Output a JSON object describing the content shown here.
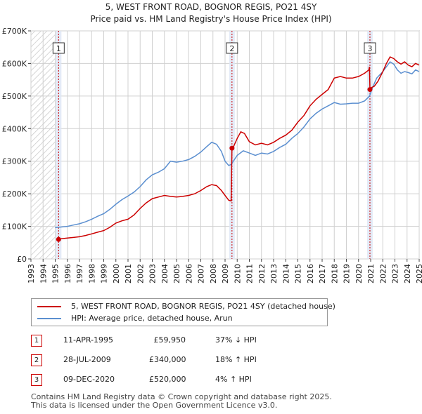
{
  "chart_data": {
    "type": "line",
    "title": "5, WEST FRONT ROAD, BOGNOR REGIS, PO21 4SY",
    "subtitle": "Price paid vs. HM Land Registry's House Price Index (HPI)",
    "xlabel": "",
    "ylabel": "",
    "xlim": [
      1993,
      2025
    ],
    "ylim": [
      0,
      700000
    ],
    "y_ticks": [
      {
        "value": 0,
        "label": "£0"
      },
      {
        "value": 100000,
        "label": "£100K"
      },
      {
        "value": 200000,
        "label": "£200K"
      },
      {
        "value": 300000,
        "label": "£300K"
      },
      {
        "value": 400000,
        "label": "£400K"
      },
      {
        "value": 500000,
        "label": "£500K"
      },
      {
        "value": 600000,
        "label": "£600K"
      },
      {
        "value": 700000,
        "label": "£700K"
      }
    ],
    "x_ticks": [
      "1993",
      "1994",
      "1995",
      "1996",
      "1997",
      "1998",
      "1999",
      "2000",
      "2001",
      "2002",
      "2003",
      "2004",
      "2005",
      "2006",
      "2007",
      "2008",
      "2009",
      "2010",
      "2011",
      "2012",
      "2013",
      "2014",
      "2015",
      "2016",
      "2017",
      "2018",
      "2019",
      "2020",
      "2021",
      "2022",
      "2023",
      "2024",
      "2025"
    ],
    "grid": true,
    "series": [
      {
        "name": "5, WEST FRONT ROAD, BOGNOR REGIS, PO21 4SY (detached house)",
        "color": "#cc0000",
        "x": [
          1995.28,
          1995.5,
          1996.0,
          1996.5,
          1997.0,
          1997.5,
          1998.0,
          1998.5,
          1999.0,
          1999.5,
          2000.0,
          2000.5,
          2001.0,
          2001.5,
          2002.0,
          2002.5,
          2003.0,
          2003.5,
          2004.0,
          2004.5,
          2005.0,
          2005.5,
          2006.0,
          2006.5,
          2007.0,
          2007.5,
          2007.9,
          2008.3,
          2008.7,
          2009.0,
          2009.3,
          2009.5,
          2009.57,
          2009.7,
          2010.0,
          2010.3,
          2010.6,
          2011.0,
          2011.5,
          2012.0,
          2012.5,
          2013.0,
          2013.5,
          2014.0,
          2014.5,
          2015.0,
          2015.5,
          2016.0,
          2016.5,
          2017.0,
          2017.5,
          2018.0,
          2018.5,
          2019.0,
          2019.5,
          2020.0,
          2020.5,
          2020.85,
          2020.9,
          2020.94,
          2021.0,
          2021.3,
          2021.6,
          2022.0,
          2022.3,
          2022.6,
          2022.9,
          2023.2,
          2023.5,
          2023.8,
          2024.1,
          2024.4,
          2024.7,
          2025.0
        ],
        "values": [
          59950,
          62000,
          64000,
          66000,
          68000,
          72000,
          77000,
          82000,
          87000,
          97000,
          110000,
          117000,
          122000,
          135000,
          155000,
          172000,
          185000,
          190000,
          195000,
          192000,
          190000,
          192000,
          195000,
          200000,
          210000,
          222000,
          228000,
          225000,
          210000,
          195000,
          180000,
          178000,
          340000,
          345000,
          370000,
          390000,
          385000,
          360000,
          350000,
          355000,
          350000,
          358000,
          370000,
          380000,
          395000,
          420000,
          440000,
          470000,
          490000,
          505000,
          520000,
          555000,
          560000,
          555000,
          555000,
          560000,
          570000,
          580000,
          590000,
          520000,
          525000,
          530000,
          545000,
          575000,
          600000,
          620000,
          615000,
          605000,
          598000,
          605000,
          595000,
          590000,
          600000,
          595000
        ]
      },
      {
        "name": "HPI: Average price, detached house, Arun",
        "color": "#5b8fd0",
        "x": [
          1995.0,
          1995.5,
          1996.0,
          1996.5,
          1997.0,
          1997.5,
          1998.0,
          1998.5,
          1999.0,
          1999.5,
          2000.0,
          2000.5,
          2001.0,
          2001.5,
          2002.0,
          2002.5,
          2003.0,
          2003.5,
          2004.0,
          2004.5,
          2005.0,
          2005.5,
          2006.0,
          2006.5,
          2007.0,
          2007.5,
          2007.9,
          2008.3,
          2008.7,
          2009.0,
          2009.3,
          2009.5,
          2010.0,
          2010.5,
          2011.0,
          2011.5,
          2012.0,
          2012.5,
          2013.0,
          2013.5,
          2014.0,
          2014.5,
          2015.0,
          2015.5,
          2016.0,
          2016.5,
          2017.0,
          2017.5,
          2018.0,
          2018.5,
          2019.0,
          2019.5,
          2020.0,
          2020.5,
          2020.9,
          2021.2,
          2021.5,
          2022.0,
          2022.3,
          2022.6,
          2022.9,
          2023.2,
          2023.5,
          2023.8,
          2024.1,
          2024.4,
          2024.7,
          2025.0
        ],
        "values": [
          96000,
          98000,
          100000,
          104000,
          108000,
          114000,
          122000,
          131000,
          139000,
          152000,
          168000,
          182000,
          193000,
          205000,
          222000,
          243000,
          258000,
          266000,
          277000,
          300000,
          297000,
          300000,
          305000,
          315000,
          328000,
          345000,
          358000,
          352000,
          330000,
          300000,
          287000,
          290000,
          318000,
          332000,
          325000,
          318000,
          325000,
          322000,
          330000,
          342000,
          352000,
          370000,
          385000,
          405000,
          430000,
          447000,
          460000,
          470000,
          480000,
          475000,
          476000,
          478000,
          478000,
          485000,
          500000,
          530000,
          555000,
          575000,
          590000,
          605000,
          598000,
          580000,
          570000,
          575000,
          572000,
          568000,
          580000,
          575000
        ]
      }
    ],
    "sales": [
      {
        "id": "1",
        "year": 1995.28,
        "price": 59950
      },
      {
        "id": "2",
        "year": 2009.57,
        "price": 340000
      },
      {
        "id": "3",
        "year": 2020.94,
        "price": 520000
      }
    ]
  },
  "legend": {
    "property_label": "5, WEST FRONT ROAD, BOGNOR REGIS, PO21 4SY (detached house)",
    "hpi_label": "HPI: Average price, detached house, Arun"
  },
  "sales_table": [
    {
      "num": "1",
      "date": "11-APR-1995",
      "price": "£59,950",
      "diff": "37% ↓ HPI"
    },
    {
      "num": "2",
      "date": "28-JUL-2009",
      "price": "£340,000",
      "diff": "18% ↑ HPI"
    },
    {
      "num": "3",
      "date": "09-DEC-2020",
      "price": "£520,000",
      "diff": "4% ↑ HPI"
    }
  ],
  "footer": {
    "line1": "Contains HM Land Registry data © Crown copyright and database right 2025.",
    "line2": "This data is licensed under the Open Government Licence v3.0."
  },
  "colors": {
    "property": "#cc0000",
    "hpi": "#5b8fd0",
    "shade": "#dde6f5",
    "grid": "#d0d0d0",
    "plot_bg": "#ffffff"
  }
}
